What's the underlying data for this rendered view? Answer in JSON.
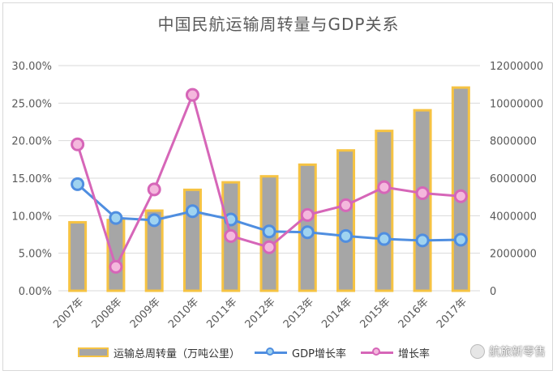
{
  "chart_data": {
    "type": "bar",
    "title": "中国民航运输周转量与GDP关系",
    "categories": [
      "2007年",
      "2008年",
      "2009年",
      "2010年",
      "2011年",
      "2012年",
      "2013年",
      "2014年",
      "2015年",
      "2016年",
      "2017年"
    ],
    "y_left": {
      "ticks": [
        "0.00%",
        "5.00%",
        "10.00%",
        "15.00%",
        "20.00%",
        "25.00%",
        "30.00%"
      ],
      "min": 0,
      "max": 30
    },
    "y_right": {
      "ticks": [
        "0",
        "2000000",
        "4000000",
        "6000000",
        "8000000",
        "10000000",
        "12000000"
      ],
      "min": 0,
      "max": 12000000
    },
    "series": [
      {
        "name": "运输总周转量（万吨公里）",
        "type": "bar",
        "axis": "right",
        "values": [
          3650000,
          3770000,
          4270000,
          5380000,
          5780000,
          6100000,
          6720000,
          7480000,
          8520000,
          9620000,
          10830000
        ]
      },
      {
        "name": "GDP增长率",
        "type": "line",
        "axis": "left",
        "values": [
          14.2,
          9.7,
          9.4,
          10.6,
          9.5,
          7.9,
          7.8,
          7.3,
          6.9,
          6.7,
          6.8
        ]
      },
      {
        "name": "增长率",
        "type": "line",
        "axis": "left",
        "values": [
          19.5,
          3.2,
          13.5,
          26.1,
          7.3,
          5.8,
          10.1,
          11.4,
          13.8,
          13.0,
          12.6
        ]
      }
    ],
    "colors": {
      "bar_fill": "#a6a6a6",
      "bar_outline": "#f6c343",
      "gdp_line": "#4f8ee0",
      "gdp_marker_fill": "#9fd3f0",
      "growth_line": "#d666b8",
      "growth_marker_fill": "#f4b8dd"
    },
    "grid": true,
    "legend": "bottom"
  },
  "legend": {
    "items": [
      {
        "label": "运输总周转量（万吨公里）"
      },
      {
        "label": "GDP增长率"
      },
      {
        "label": "增长率"
      }
    ]
  },
  "watermark": {
    "text": "航旅新零售"
  }
}
